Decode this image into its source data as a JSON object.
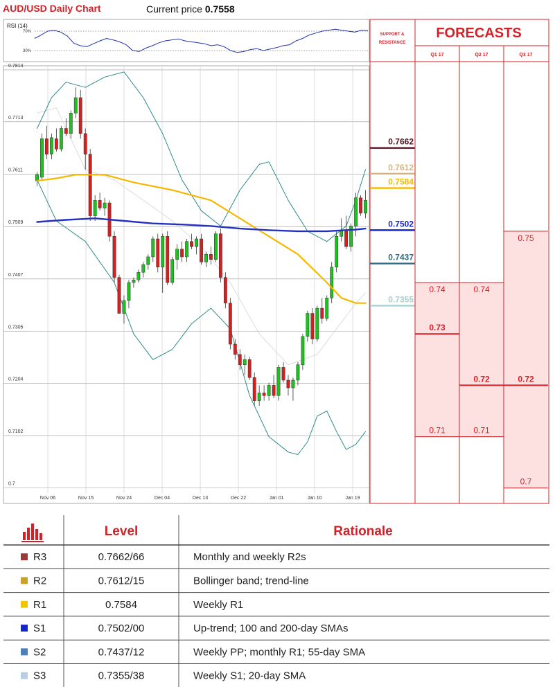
{
  "header": {
    "title": "AUD/USD Daily Chart",
    "price_label": "Current price",
    "price_value": "0.7558"
  },
  "rsi": {
    "label": "RSI (14)",
    "upper_label": "70%",
    "lower_label": "30%"
  },
  "sr_panel": {
    "heading_line1": "SUPPORT &",
    "heading_line2": "RESISTANCE",
    "levels": [
      {
        "value": 0.7662,
        "label": "0.7662",
        "color": "#5a1525"
      },
      {
        "value": 0.7612,
        "label": "0.7612",
        "color": "#d9b57a"
      },
      {
        "value": 0.7584,
        "label": "0.7584",
        "color": "#f5b800"
      },
      {
        "value": 0.7502,
        "label": "0.7502",
        "color": "#1428c8"
      },
      {
        "value": 0.7437,
        "label": "0.7437",
        "color": "#2f6d8a"
      },
      {
        "value": 0.7355,
        "label": "0.7355",
        "color": "#a9cfd0"
      }
    ]
  },
  "forecasts": {
    "title": "FORECASTS",
    "quarters": [
      "Q1 17",
      "Q2 17",
      "Q3 17"
    ],
    "columns": [
      {
        "high": "0.74",
        "median": "0.73",
        "low": "0.71"
      },
      {
        "high": "0.74",
        "median": "0.72",
        "low": "0.71"
      },
      {
        "high": "0.75",
        "median": "0.72",
        "low": "0.7"
      }
    ],
    "values": [
      {
        "high": 0.74,
        "median": 0.73,
        "low": 0.71
      },
      {
        "high": 0.74,
        "median": 0.72,
        "low": 0.71
      },
      {
        "high": 0.75,
        "median": 0.72,
        "low": 0.7
      }
    ],
    "colors": {
      "line": "#d61f26",
      "fill": "#fde1e1"
    }
  },
  "table": {
    "headers": [
      "Level",
      "Rationale"
    ],
    "rows": [
      {
        "name": "R3",
        "level": "0.7662/66",
        "rationale": "Monthly and weekly R2s",
        "color": "#9b3a3a"
      },
      {
        "name": "R2",
        "level": "0.7612/15",
        "rationale": "Bollinger band; trend-line",
        "color": "#c9a227"
      },
      {
        "name": "R1",
        "level": "0.7584",
        "rationale": "Weekly R1",
        "color": "#f5c400"
      },
      {
        "name": "S1",
        "level": "0.7502/00",
        "rationale": "Up-trend; 100 and 200-day SMAs",
        "color": "#1428c8"
      },
      {
        "name": "S2",
        "level": "0.7437/12",
        "rationale": "Weekly PP; monthly R1; 55-day SMA",
        "color": "#4a7fc0"
      },
      {
        "name": "S3",
        "level": "0.7355/38",
        "rationale": "Weekly S1; 20-day SMA",
        "color": "#b9cde8"
      }
    ]
  },
  "chart_data": {
    "type": "candlestick",
    "title": "AUD/USD Daily Chart",
    "ylim": [
      0.697,
      0.7822
    ],
    "y_ticks": [
      0.7814,
      0.7713,
      0.7611,
      0.7509,
      0.7407,
      0.7305,
      0.7204,
      0.7102,
      0.7
    ],
    "x_ticks": [
      "Nov 06",
      "Nov 15",
      "Nov 24",
      "Dec 04",
      "Dec 13",
      "Dec 22",
      "Jan 01",
      "Jan 10",
      "Jan 19"
    ],
    "grid": true,
    "candles": [
      [
        0.7598,
        0.7615,
        0.7588,
        0.761
      ],
      [
        0.7605,
        0.769,
        0.76,
        0.768
      ],
      [
        0.768,
        0.7705,
        0.764,
        0.765
      ],
      [
        0.765,
        0.769,
        0.764,
        0.7682
      ],
      [
        0.768,
        0.77,
        0.7655,
        0.766
      ],
      [
        0.766,
        0.7705,
        0.7655,
        0.77
      ],
      [
        0.77,
        0.772,
        0.7685,
        0.769
      ],
      [
        0.769,
        0.7735,
        0.768,
        0.773
      ],
      [
        0.773,
        0.778,
        0.772,
        0.776
      ],
      [
        0.776,
        0.7775,
        0.768,
        0.769
      ],
      [
        0.769,
        0.77,
        0.762,
        0.765
      ],
      [
        0.765,
        0.766,
        0.752,
        0.753
      ],
      [
        0.753,
        0.757,
        0.752,
        0.756
      ],
      [
        0.756,
        0.7575,
        0.754,
        0.7545
      ],
      [
        0.7545,
        0.7565,
        0.753,
        0.7555
      ],
      [
        0.7555,
        0.756,
        0.748,
        0.749
      ],
      [
        0.749,
        0.75,
        0.74,
        0.741
      ],
      [
        0.741,
        0.7415,
        0.734,
        0.734
      ],
      [
        0.734,
        0.7375,
        0.732,
        0.7365
      ],
      [
        0.7365,
        0.7405,
        0.735,
        0.74
      ],
      [
        0.74,
        0.741,
        0.739,
        0.7405
      ],
      [
        0.7405,
        0.7425,
        0.74,
        0.742
      ],
      [
        0.742,
        0.744,
        0.741,
        0.7435
      ],
      [
        0.7435,
        0.7455,
        0.7425,
        0.745
      ],
      [
        0.745,
        0.749,
        0.744,
        0.7485
      ],
      [
        0.7485,
        0.7495,
        0.742,
        0.743
      ],
      [
        0.743,
        0.7495,
        0.738,
        0.749
      ],
      [
        0.749,
        0.75,
        0.7395,
        0.74
      ],
      [
        0.74,
        0.745,
        0.7395,
        0.7445
      ],
      [
        0.7445,
        0.7475,
        0.7425,
        0.7465
      ],
      [
        0.7465,
        0.748,
        0.744,
        0.745
      ],
      [
        0.745,
        0.7485,
        0.744,
        0.748
      ],
      [
        0.748,
        0.7495,
        0.7465,
        0.747
      ],
      [
        0.747,
        0.749,
        0.7455,
        0.7485
      ],
      [
        0.7485,
        0.7495,
        0.7435,
        0.744
      ],
      [
        0.744,
        0.746,
        0.743,
        0.7455
      ],
      [
        0.7455,
        0.747,
        0.7435,
        0.7445
      ],
      [
        0.7445,
        0.75,
        0.744,
        0.7495
      ],
      [
        0.7495,
        0.7505,
        0.74,
        0.741
      ],
      [
        0.741,
        0.742,
        0.735,
        0.736
      ],
      [
        0.736,
        0.737,
        0.727,
        0.728
      ],
      [
        0.728,
        0.729,
        0.725,
        0.726
      ],
      [
        0.726,
        0.727,
        0.723,
        0.724
      ],
      [
        0.724,
        0.726,
        0.722,
        0.725
      ],
      [
        0.725,
        0.7255,
        0.721,
        0.7215
      ],
      [
        0.7215,
        0.7225,
        0.716,
        0.717
      ],
      [
        0.717,
        0.72,
        0.716,
        0.7185
      ],
      [
        0.7185,
        0.72,
        0.717,
        0.718
      ],
      [
        0.718,
        0.7205,
        0.717,
        0.72
      ],
      [
        0.72,
        0.722,
        0.7175,
        0.718
      ],
      [
        0.718,
        0.724,
        0.717,
        0.7235
      ],
      [
        0.7235,
        0.7245,
        0.7205,
        0.721
      ],
      [
        0.721,
        0.722,
        0.718,
        0.7195
      ],
      [
        0.7195,
        0.7215,
        0.717,
        0.721
      ],
      [
        0.721,
        0.7245,
        0.72,
        0.724
      ],
      [
        0.724,
        0.73,
        0.723,
        0.7295
      ],
      [
        0.7295,
        0.7345,
        0.7285,
        0.734
      ],
      [
        0.734,
        0.735,
        0.728,
        0.729
      ],
      [
        0.729,
        0.7355,
        0.7285,
        0.735
      ],
      [
        0.735,
        0.737,
        0.732,
        0.733
      ],
      [
        0.733,
        0.7375,
        0.7325,
        0.737
      ],
      [
        0.737,
        0.744,
        0.736,
        0.743
      ],
      [
        0.743,
        0.75,
        0.742,
        0.749
      ],
      [
        0.749,
        0.7525,
        0.748,
        0.75
      ],
      [
        0.75,
        0.753,
        0.7465,
        0.747
      ],
      [
        0.747,
        0.7515,
        0.746,
        0.751
      ],
      [
        0.751,
        0.7575,
        0.749,
        0.7565
      ],
      [
        0.7565,
        0.757,
        0.753,
        0.7535
      ],
      [
        0.7535,
        0.758,
        0.7525,
        0.756
      ]
    ],
    "series": [
      {
        "points": [
          [
            0,
            0.7598
          ],
          [
            4,
            0.7603
          ],
          [
            8,
            0.761
          ],
          [
            14,
            0.761
          ],
          [
            20,
            0.7595
          ],
          [
            28,
            0.758
          ],
          [
            36,
            0.756
          ],
          [
            42,
            0.7525
          ],
          [
            48,
            0.749
          ],
          [
            54,
            0.7455
          ],
          [
            60,
            0.74
          ],
          [
            63,
            0.737
          ],
          [
            66,
            0.736
          ],
          [
            68,
            0.736
          ]
        ]
      },
      {
        "points": [
          [
            0,
            0.7518
          ],
          [
            6,
            0.7522
          ],
          [
            12,
            0.7525
          ],
          [
            18,
            0.752
          ],
          [
            24,
            0.7515
          ],
          [
            30,
            0.7513
          ],
          [
            36,
            0.751
          ],
          [
            42,
            0.7505
          ],
          [
            48,
            0.7502
          ],
          [
            54,
            0.75
          ],
          [
            60,
            0.75
          ],
          [
            66,
            0.7503
          ],
          [
            68,
            0.7505
          ]
        ]
      },
      {
        "points": [
          [
            0,
            0.773
          ],
          [
            4,
            0.774
          ],
          [
            10,
            0.762
          ],
          [
            16,
            0.76
          ],
          [
            22,
            0.756
          ],
          [
            28,
            0.752
          ],
          [
            34,
            0.747
          ],
          [
            40,
            0.74
          ],
          [
            46,
            0.73
          ],
          [
            52,
            0.724
          ],
          [
            58,
            0.726
          ],
          [
            62,
            0.731
          ],
          [
            66,
            0.736
          ],
          [
            68,
            0.738
          ]
        ]
      },
      {
        "points": [
          [
            0,
            0.77
          ],
          [
            3,
            0.776
          ],
          [
            6,
            0.779
          ],
          [
            10,
            0.778
          ],
          [
            14,
            0.78
          ],
          [
            18,
            0.781
          ],
          [
            22,
            0.776
          ],
          [
            26,
            0.769
          ],
          [
            30,
            0.76
          ],
          [
            34,
            0.754
          ],
          [
            38,
            0.751
          ],
          [
            42,
            0.758
          ],
          [
            46,
            0.763
          ],
          [
            48,
            0.7635
          ],
          [
            52,
            0.756
          ],
          [
            56,
            0.75
          ],
          [
            60,
            0.748
          ],
          [
            64,
            0.751
          ],
          [
            66,
            0.756
          ],
          [
            68,
            0.762
          ]
        ]
      },
      {
        "points": [
          [
            0,
            0.76
          ],
          [
            4,
            0.752
          ],
          [
            10,
            0.748
          ],
          [
            16,
            0.74
          ],
          [
            20,
            0.73
          ],
          [
            24,
            0.725
          ],
          [
            28,
            0.727
          ],
          [
            32,
            0.732
          ],
          [
            36,
            0.735
          ],
          [
            40,
            0.731
          ],
          [
            44,
            0.718
          ],
          [
            48,
            0.71
          ],
          [
            52,
            0.707
          ],
          [
            54,
            0.7065
          ],
          [
            56,
            0.709
          ],
          [
            58,
            0.714
          ],
          [
            60,
            0.715
          ],
          [
            62,
            0.711
          ],
          [
            64,
            0.7075
          ],
          [
            66,
            0.7085
          ],
          [
            68,
            0.711
          ]
        ]
      }
    ],
    "rsi_values": [
      55,
      62,
      70,
      72,
      68,
      60,
      45,
      40,
      38,
      44,
      50,
      55,
      52,
      48,
      42,
      30,
      28,
      35,
      40,
      46,
      50,
      52,
      54,
      50,
      48,
      46,
      44,
      40,
      42,
      38,
      30,
      26,
      28,
      32,
      34,
      30,
      33,
      36,
      40,
      42,
      50,
      55,
      62,
      66,
      70,
      72,
      74,
      72,
      70,
      68,
      72,
      71
    ]
  }
}
